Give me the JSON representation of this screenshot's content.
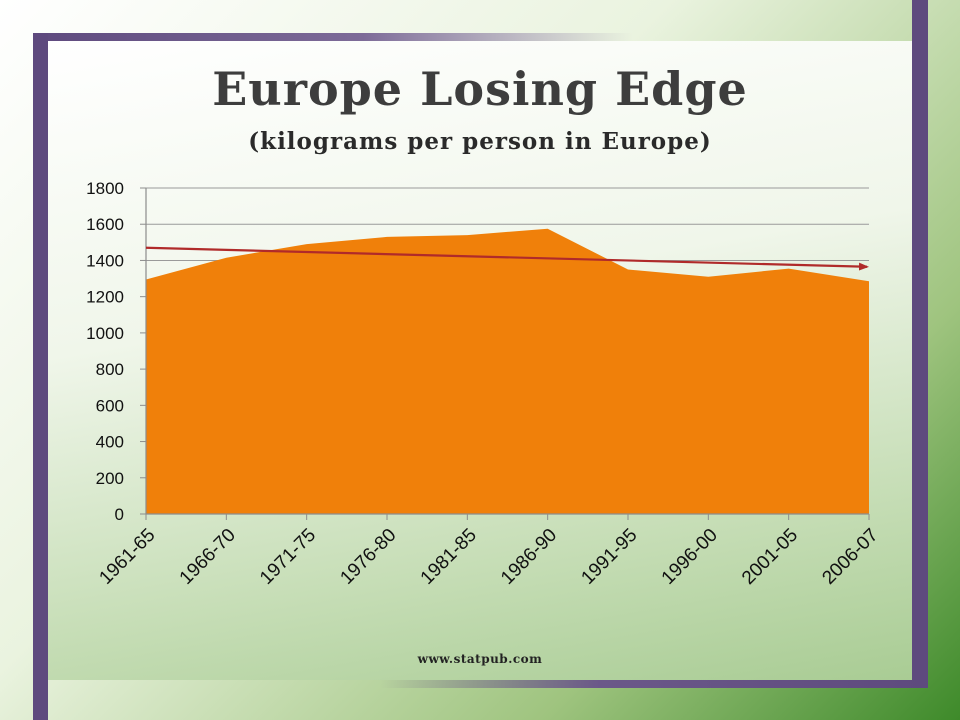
{
  "slide": {
    "title": "Europe Losing Edge",
    "subtitle": "(kilograms per person in Europe)",
    "source": "www.statpub.com"
  },
  "chart_data": {
    "type": "area",
    "categories": [
      "1961-65",
      "1966-70",
      "1971-75",
      "1976-80",
      "1981-85",
      "1986-90",
      "1991-95",
      "1996-00",
      "2001-05",
      "2006-07"
    ],
    "values": [
      1295,
      1415,
      1490,
      1530,
      1540,
      1575,
      1350,
      1310,
      1355,
      1285
    ],
    "ylim": [
      0,
      1800
    ],
    "yticks": [
      0,
      200,
      400,
      600,
      800,
      1000,
      1200,
      1400,
      1600,
      1800
    ],
    "grid": true,
    "area_color": "#f0800a",
    "trendline": {
      "start": 1470,
      "end": 1365,
      "color": "#b02a2a"
    }
  }
}
